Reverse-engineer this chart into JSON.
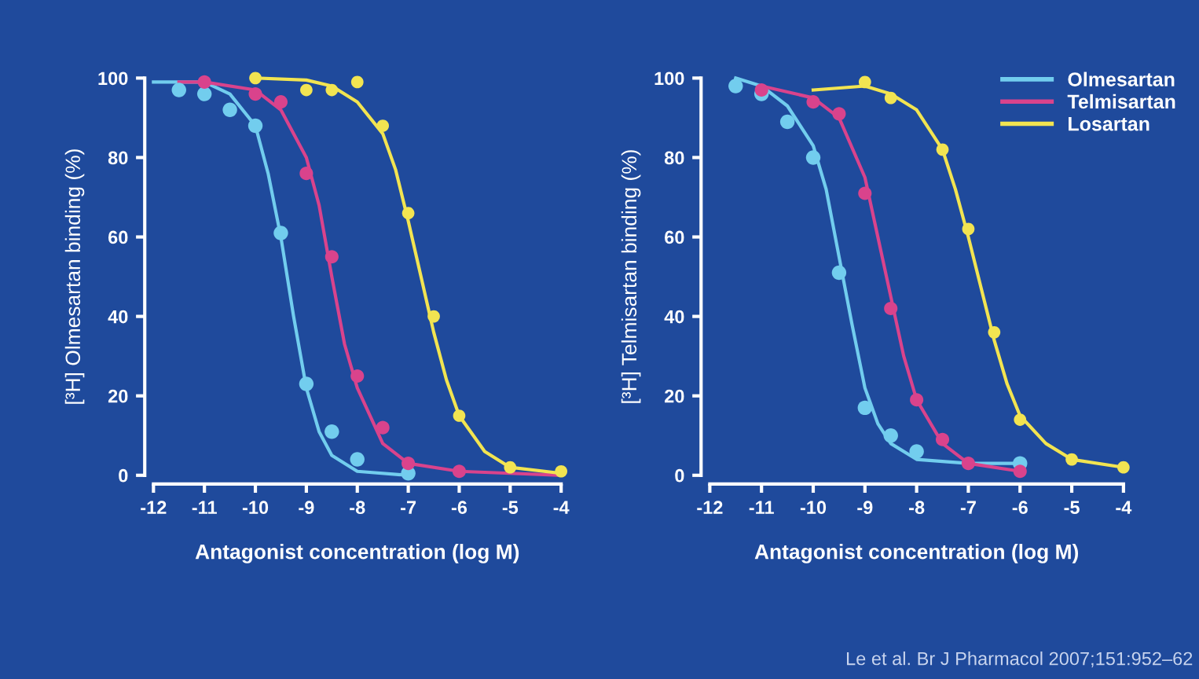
{
  "chart_data": [
    {
      "type": "scatter",
      "xlabel": "Antagonist concentration (log M)",
      "ylabel": "[³H] Olmesartan binding (%)",
      "xlim": [
        -12,
        -4
      ],
      "ylim": [
        0,
        100
      ],
      "xticks": [
        -12,
        -11,
        -10,
        -9,
        -8,
        -7,
        -6,
        -5,
        -4
      ],
      "yticks": [
        0,
        20,
        40,
        60,
        80,
        100
      ],
      "grid": false,
      "legend": false,
      "marker": "circle",
      "series": [
        {
          "type": "line",
          "color": "#72cdee",
          "marker": "none",
          "x": [
            -12,
            -11,
            -10.5,
            -10,
            -9.75,
            -9.5,
            -9.25,
            -9,
            -8.75,
            -8.5,
            -8,
            -7
          ],
          "values": [
            99,
            99,
            96,
            88,
            76,
            60,
            40,
            22,
            11,
            5,
            1,
            0
          ]
        },
        {
          "type": "line",
          "color": "#d9438c",
          "marker": "none",
          "x": [
            -11.5,
            -11,
            -10,
            -9.5,
            -9,
            -8.75,
            -8.5,
            -8.25,
            -8,
            -7.5,
            -7,
            -6,
            -5,
            -4
          ],
          "values": [
            99,
            99,
            97,
            92,
            80,
            68,
            50,
            33,
            22,
            8,
            3,
            1,
            0.5,
            0
          ]
        },
        {
          "type": "line",
          "color": "#f2e451",
          "marker": "none",
          "x": [
            -10,
            -9,
            -8.5,
            -8,
            -7.5,
            -7.25,
            -7,
            -6.75,
            -6.5,
            -6.25,
            -6,
            -5.5,
            -5,
            -4
          ],
          "values": [
            100,
            99.5,
            98,
            94,
            86,
            77,
            64,
            50,
            36,
            24,
            15,
            6,
            2,
            0.5
          ]
        },
        {
          "color": "#72cdee",
          "x": [
            -11.5,
            -11,
            -10.5,
            -10,
            -9.5,
            -9,
            -8.5,
            -8,
            -7
          ],
          "values": [
            97,
            96,
            92,
            88,
            61,
            23,
            11,
            4,
            0.5
          ]
        },
        {
          "color": "#d9438c",
          "x": [
            -11,
            -10,
            -9.5,
            -9,
            -8.5,
            -8,
            -7.5,
            -7,
            -6
          ],
          "values": [
            99,
            96,
            94,
            76,
            55,
            25,
            12,
            3,
            1
          ]
        },
        {
          "color": "#f2e451",
          "x": [
            -10,
            -9,
            -8.5,
            -8,
            -7.5,
            -7,
            -6.5,
            -6,
            -5,
            -4
          ],
          "values": [
            100,
            97,
            97,
            99,
            88,
            66,
            40,
            15,
            2,
            1
          ]
        }
      ]
    },
    {
      "type": "scatter",
      "xlabel": "Antagonist concentration (log M)",
      "ylabel": "[³H] Telmisartan binding (%)",
      "xlim": [
        -12,
        -4
      ],
      "ylim": [
        0,
        100
      ],
      "xticks": [
        -12,
        -11,
        -10,
        -9,
        -8,
        -7,
        -6,
        -5,
        -4
      ],
      "yticks": [
        0,
        20,
        40,
        60,
        80,
        100
      ],
      "grid": false,
      "legend": "top right",
      "marker": "circle",
      "annotations": [
        "Le et al. Br J Pharmacol 2007;151:952–62"
      ],
      "series": [
        {
          "type": "line",
          "name": "Olmesartan",
          "color": "#72cdee",
          "marker": "none",
          "x": [
            -11.5,
            -11,
            -10.5,
            -10,
            -9.75,
            -9.5,
            -9.25,
            -9,
            -8.75,
            -8.5,
            -8,
            -7,
            -6
          ],
          "values": [
            100,
            98,
            93,
            83,
            72,
            55,
            38,
            22,
            13,
            8,
            4,
            3,
            3
          ]
        },
        {
          "type": "line",
          "name": "Telmisartan",
          "color": "#d9438c",
          "marker": "none",
          "x": [
            -11,
            -10,
            -9.5,
            -9,
            -8.75,
            -8.5,
            -8.25,
            -8,
            -7.5,
            -7,
            -6
          ],
          "values": [
            98,
            95,
            90,
            75,
            60,
            45,
            30,
            19,
            8,
            3,
            1
          ]
        },
        {
          "type": "line",
          "name": "Losartan",
          "color": "#f2e451",
          "marker": "none",
          "x": [
            -10,
            -9,
            -8.5,
            -8,
            -7.5,
            -7.25,
            -7,
            -6.75,
            -6.5,
            -6.25,
            -6,
            -5.5,
            -5,
            -4
          ],
          "values": [
            97,
            98,
            96,
            92,
            82,
            72,
            60,
            47,
            34,
            23,
            15,
            8,
            4,
            2
          ]
        },
        {
          "color": "#72cdee",
          "x": [
            -11.5,
            -11,
            -10.5,
            -10,
            -9.5,
            -9,
            -8.5,
            -8,
            -6
          ],
          "values": [
            98,
            96,
            89,
            80,
            51,
            17,
            10,
            6,
            3
          ]
        },
        {
          "color": "#d9438c",
          "x": [
            -11,
            -10,
            -9.5,
            -9,
            -8.5,
            -8,
            -7.5,
            -7,
            -6
          ],
          "values": [
            97,
            94,
            91,
            71,
            42,
            19,
            9,
            3,
            1
          ]
        },
        {
          "color": "#f2e451",
          "x": [
            -9,
            -8.5,
            -7.5,
            -7,
            -6.5,
            -6,
            -5,
            -4
          ],
          "values": [
            99,
            95,
            82,
            62,
            36,
            14,
            4,
            2
          ]
        }
      ]
    }
  ]
}
